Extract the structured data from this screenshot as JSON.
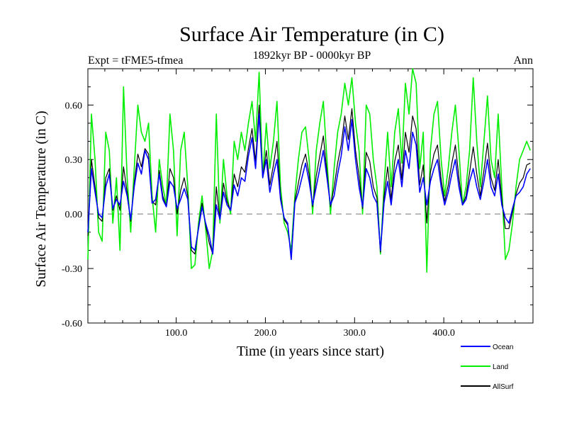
{
  "chart_data": {
    "type": "line",
    "title": "Surface Air Temperature (in C)",
    "subtitle_left": "Expt = tFME5-tfmea",
    "subtitle_center": "1892kyr BP - 0000kyr BP",
    "subtitle_right": "Ann",
    "xlabel": "Time (in years since start)",
    "ylabel": "Surface Air Temperature (in C)",
    "xlim": [
      1,
      500
    ],
    "ylim": [
      -0.6,
      0.8
    ],
    "x_ticks": [
      100,
      200,
      300,
      400
    ],
    "x_tick_labels": [
      "100.0",
      "200.0",
      "300.0",
      "400.0"
    ],
    "y_ticks": [
      -0.6,
      -0.3,
      0.0,
      0.3,
      0.6
    ],
    "y_tick_labels": [
      "-0.60",
      "-0.30",
      "0.00",
      "0.30",
      "0.60"
    ],
    "reference_line": 0.0,
    "legend_position": "below-right",
    "series": [
      {
        "name": "Ocean",
        "color": "#0000ff",
        "x_start": 1,
        "x_step": 4,
        "values": [
          -0.1,
          0.25,
          0.12,
          0.0,
          -0.02,
          0.15,
          0.22,
          0.03,
          0.08,
          0.05,
          0.18,
          0.1,
          -0.03,
          0.15,
          0.28,
          0.22,
          0.35,
          0.3,
          0.06,
          0.08,
          0.22,
          0.08,
          0.04,
          0.18,
          0.15,
          0.03,
          0.08,
          0.14,
          0.08,
          -0.18,
          -0.2,
          -0.08,
          0.04,
          -0.05,
          -0.12,
          -0.22,
          0.05,
          -0.03,
          0.12,
          0.05,
          0.02,
          0.16,
          0.1,
          0.2,
          0.18,
          0.32,
          0.42,
          0.25,
          0.55,
          0.2,
          0.3,
          0.12,
          0.22,
          0.3,
          0.08,
          -0.02,
          -0.05,
          -0.25,
          0.06,
          0.12,
          0.2,
          0.28,
          0.18,
          0.05,
          0.15,
          0.25,
          0.35,
          0.2,
          0.05,
          0.1,
          0.22,
          0.32,
          0.48,
          0.35,
          0.52,
          0.3,
          0.15,
          0.04,
          0.25,
          0.2,
          0.1,
          0.06,
          -0.2,
          0.06,
          0.18,
          0.05,
          0.22,
          0.3,
          0.15,
          0.35,
          0.25,
          0.45,
          0.38,
          0.12,
          0.2,
          0.05,
          0.18,
          0.25,
          0.3,
          0.15,
          0.05,
          0.12,
          0.22,
          0.3,
          0.15,
          0.05,
          0.08,
          0.18,
          0.25,
          0.15,
          0.08,
          0.18,
          0.3,
          0.15,
          0.1,
          0.22,
          0.05,
          -0.02,
          -0.05,
          0.03,
          0.1,
          0.12,
          0.15,
          0.22,
          0.25
        ]
      },
      {
        "name": "Land",
        "color": "#00ee00",
        "x_start": 1,
        "x_step": 4,
        "values": [
          -0.25,
          0.55,
          0.3,
          -0.1,
          -0.15,
          0.45,
          0.35,
          -0.05,
          0.2,
          -0.2,
          0.7,
          0.2,
          -0.1,
          0.25,
          0.6,
          0.45,
          0.4,
          0.5,
          0.1,
          -0.1,
          0.3,
          0.15,
          0.05,
          0.55,
          0.35,
          -0.12,
          0.35,
          0.45,
          0.15,
          -0.3,
          -0.28,
          -0.05,
          0.1,
          -0.08,
          -0.3,
          -0.2,
          0.55,
          -0.05,
          0.3,
          0.1,
          0.0,
          0.4,
          0.3,
          0.45,
          0.35,
          0.5,
          0.62,
          0.4,
          0.78,
          0.2,
          0.5,
          0.25,
          0.4,
          0.62,
          0.15,
          -0.05,
          -0.1,
          -0.2,
          0.1,
          0.3,
          0.45,
          0.48,
          0.3,
          0.0,
          0.35,
          0.5,
          0.62,
          0.3,
          0.0,
          0.25,
          0.45,
          0.55,
          0.72,
          0.6,
          0.75,
          0.5,
          0.35,
          0.0,
          0.6,
          0.55,
          0.3,
          0.15,
          -0.22,
          0.15,
          0.45,
          0.15,
          0.45,
          0.58,
          0.28,
          0.72,
          0.55,
          0.8,
          0.72,
          0.25,
          0.45,
          -0.32,
          0.35,
          0.55,
          0.62,
          0.3,
          0.1,
          0.25,
          0.45,
          0.6,
          0.35,
          0.05,
          0.15,
          0.35,
          0.75,
          0.4,
          0.15,
          0.4,
          0.65,
          0.3,
          0.2,
          0.55,
          0.15,
          -0.25,
          -0.2,
          -0.05,
          0.15,
          0.3,
          0.35,
          0.4,
          0.35
        ]
      },
      {
        "name": "AllSurf",
        "color": "#000000",
        "x_start": 1,
        "x_step": 4,
        "values": [
          -0.12,
          0.3,
          0.15,
          -0.02,
          -0.04,
          0.2,
          0.25,
          0.02,
          0.1,
          0.02,
          0.26,
          0.12,
          -0.04,
          0.17,
          0.33,
          0.26,
          0.36,
          0.33,
          0.07,
          0.05,
          0.24,
          0.1,
          0.04,
          0.25,
          0.2,
          0.0,
          0.13,
          0.2,
          0.1,
          -0.2,
          -0.22,
          -0.07,
          0.06,
          -0.06,
          -0.16,
          -0.22,
          0.15,
          -0.03,
          0.17,
          0.07,
          0.02,
          0.22,
          0.15,
          0.26,
          0.23,
          0.36,
          0.47,
          0.29,
          0.6,
          0.2,
          0.35,
          0.16,
          0.27,
          0.4,
          0.1,
          -0.03,
          -0.06,
          -0.24,
          0.07,
          0.17,
          0.27,
          0.33,
          0.22,
          0.04,
          0.21,
          0.32,
          0.43,
          0.23,
          0.04,
          0.15,
          0.28,
          0.38,
          0.54,
          0.41,
          0.58,
          0.35,
          0.21,
          0.03,
          0.34,
          0.29,
          0.15,
          0.09,
          -0.21,
          0.09,
          0.26,
          0.08,
          0.29,
          0.38,
          0.19,
          0.45,
          0.34,
          0.54,
          0.47,
          0.16,
          0.27,
          -0.05,
          0.23,
          0.33,
          0.38,
          0.19,
          0.07,
          0.16,
          0.28,
          0.38,
          0.2,
          0.05,
          0.1,
          0.23,
          0.37,
          0.22,
          0.1,
          0.24,
          0.39,
          0.2,
          0.13,
          0.3,
          0.08,
          -0.08,
          -0.08,
          0.01,
          0.11,
          0.17,
          0.2,
          0.27,
          0.28
        ]
      }
    ]
  }
}
